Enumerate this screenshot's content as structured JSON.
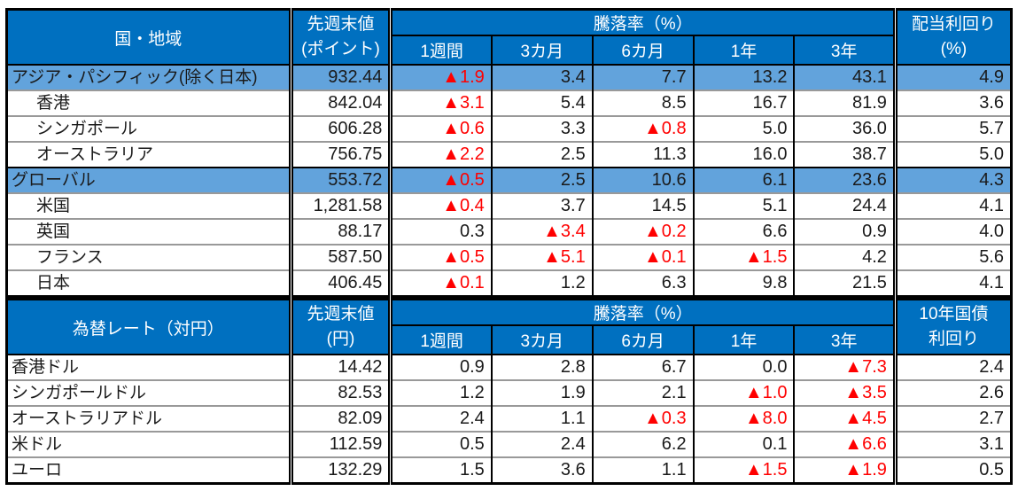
{
  "colors": {
    "header_bg": "#0070C0",
    "highlight_bg": "#62A3DC",
    "negative": "#FF0000",
    "row_divider": "#999999",
    "border": "#000000",
    "header_text": "#FFFFFF",
    "text": "#1A1A1A"
  },
  "tables": [
    {
      "label_header": "国・地域",
      "value_header_line1": "先週末値",
      "value_header_line2": "(ポイント)",
      "change_header": "騰落率（%）",
      "period_headers": [
        "1週間",
        "3カ月",
        "6カ月",
        "1年",
        "3年"
      ],
      "last_header_line1": "配当利回り",
      "last_header_line2": "(%)",
      "rows": [
        {
          "label": "アジア・パシフィック(除く日本)",
          "highlight": true,
          "indent": false,
          "value": "932.44",
          "changes": [
            "▲1.9",
            "3.4",
            "7.7",
            "13.2",
            "43.1"
          ],
          "last": "4.9"
        },
        {
          "label": "香港",
          "highlight": false,
          "indent": true,
          "value": "842.04",
          "changes": [
            "▲3.1",
            "5.4",
            "8.5",
            "16.7",
            "81.9"
          ],
          "last": "3.6"
        },
        {
          "label": "シンガポール",
          "highlight": false,
          "indent": true,
          "value": "606.28",
          "changes": [
            "▲0.6",
            "3.3",
            "▲0.8",
            "5.0",
            "36.0"
          ],
          "last": "5.7"
        },
        {
          "label": "オーストラリア",
          "highlight": false,
          "indent": true,
          "value": "756.75",
          "changes": [
            "▲2.2",
            "2.5",
            "11.3",
            "16.0",
            "38.7"
          ],
          "last": "5.0"
        },
        {
          "label": "グローバル",
          "highlight": true,
          "indent": false,
          "value": "553.72",
          "changes": [
            "▲0.5",
            "2.5",
            "10.6",
            "6.1",
            "23.6"
          ],
          "last": "4.3"
        },
        {
          "label": "米国",
          "highlight": false,
          "indent": true,
          "value": "1,281.58",
          "changes": [
            "▲0.4",
            "3.7",
            "14.5",
            "5.1",
            "24.4"
          ],
          "last": "4.1"
        },
        {
          "label": "英国",
          "highlight": false,
          "indent": true,
          "value": "88.17",
          "changes": [
            "0.3",
            "▲3.4",
            "▲0.2",
            "6.6",
            "0.9"
          ],
          "last": "4.0"
        },
        {
          "label": "フランス",
          "highlight": false,
          "indent": true,
          "value": "587.50",
          "changes": [
            "▲0.5",
            "▲5.1",
            "▲0.1",
            "▲1.5",
            "4.2"
          ],
          "last": "5.6"
        },
        {
          "label": "日本",
          "highlight": false,
          "indent": true,
          "value": "406.45",
          "changes": [
            "▲0.1",
            "1.2",
            "6.3",
            "9.8",
            "21.5"
          ],
          "last": "4.1"
        }
      ]
    },
    {
      "label_header": "為替レート（対円）",
      "value_header_line1": "先週末値",
      "value_header_line2": "(円)",
      "change_header": "騰落率（%）",
      "period_headers": [
        "1週間",
        "3カ月",
        "6カ月",
        "1年",
        "3年"
      ],
      "last_header_line1": "10年国債",
      "last_header_line2": "利回り",
      "rows": [
        {
          "label": "香港ドル",
          "highlight": false,
          "indent": false,
          "value": "14.42",
          "changes": [
            "0.9",
            "2.8",
            "6.7",
            "0.0",
            "▲7.3"
          ],
          "last": "2.4"
        },
        {
          "label": "シンガポールドル",
          "highlight": false,
          "indent": false,
          "value": "82.53",
          "changes": [
            "1.2",
            "1.9",
            "2.1",
            "▲1.0",
            "▲3.5"
          ],
          "last": "2.6"
        },
        {
          "label": "オーストラリアドル",
          "highlight": false,
          "indent": false,
          "value": "82.09",
          "changes": [
            "2.4",
            "1.1",
            "▲0.3",
            "▲8.0",
            "▲4.5"
          ],
          "last": "2.7"
        },
        {
          "label": "米ドル",
          "highlight": false,
          "indent": false,
          "value": "112.59",
          "changes": [
            "0.5",
            "2.4",
            "6.2",
            "0.1",
            "▲6.6"
          ],
          "last": "3.1"
        },
        {
          "label": "ユーロ",
          "highlight": false,
          "indent": false,
          "value": "132.29",
          "changes": [
            "1.5",
            "3.6",
            "1.1",
            "▲1.5",
            "▲1.9"
          ],
          "last": "0.5"
        }
      ]
    }
  ]
}
